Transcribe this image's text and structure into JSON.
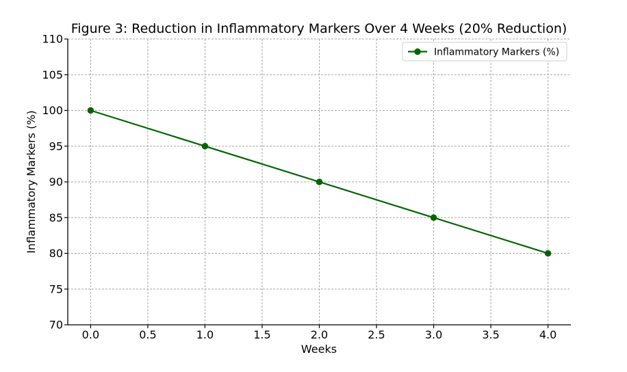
{
  "chart_data": {
    "type": "line",
    "title": "Figure 3: Reduction in Inflammatory Markers Over 4 Weeks (20% Reduction)",
    "xlabel": "Weeks",
    "ylabel": "Inflammatory Markers (%)",
    "xlim": [
      -0.2,
      4.2
    ],
    "ylim": [
      70,
      110
    ],
    "xticks": [
      0.0,
      0.5,
      1.0,
      1.5,
      2.0,
      2.5,
      3.0,
      3.5,
      4.0
    ],
    "xtick_labels": [
      "0.0",
      "0.5",
      "1.0",
      "1.5",
      "2.0",
      "2.5",
      "3.0",
      "3.5",
      "4.0"
    ],
    "yticks": [
      70,
      75,
      80,
      85,
      90,
      95,
      100,
      105,
      110
    ],
    "ytick_labels": [
      "70",
      "75",
      "80",
      "85",
      "90",
      "95",
      "100",
      "105",
      "110"
    ],
    "grid": true,
    "legend_position": "top-right",
    "series": [
      {
        "name": "Inflammatory Markers (%)",
        "color": "#006400",
        "marker": "circle",
        "x": [
          0,
          1,
          2,
          3,
          4
        ],
        "y": [
          100,
          95,
          90,
          85,
          80
        ]
      }
    ]
  }
}
